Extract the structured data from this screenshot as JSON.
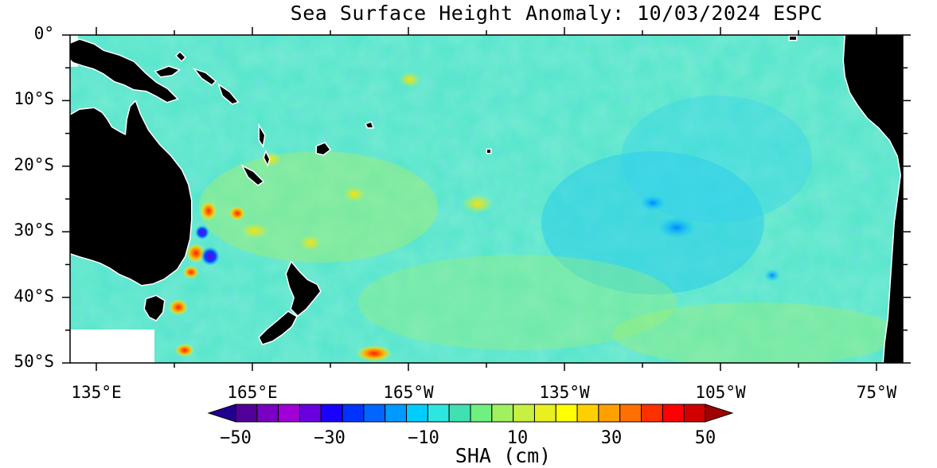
{
  "title": "Sea Surface Height Anomaly: 10/03/2024 ESPC",
  "map": {
    "lat_labels": [
      "0°",
      "10°S",
      "20°S",
      "30°S",
      "40°S",
      "50°S"
    ],
    "lon_labels": [
      "135°E",
      "165°E",
      "165°W",
      "135°W",
      "105°W",
      "75°W"
    ],
    "land_color": "#000000",
    "nodata_color": "#ffffff"
  },
  "colorbar": {
    "title": "SHA (cm)",
    "tick_labels": [
      "−50",
      "−30",
      "−10",
      "10",
      "30",
      "50"
    ],
    "range": [
      -50,
      50
    ],
    "step": 5,
    "colors": [
      "#52009a",
      "#7a00c2",
      "#a000d6",
      "#6a00e0",
      "#1a00ff",
      "#0033ff",
      "#0066ff",
      "#0099ff",
      "#00ccff",
      "#2ee6e0",
      "#40e0b0",
      "#70f080",
      "#a0f060",
      "#c8f040",
      "#e8f020",
      "#ffff00",
      "#ffd000",
      "#ffa000",
      "#ff7000",
      "#ff3000",
      "#ff0000",
      "#d00000"
    ],
    "under_color": "#200090",
    "over_color": "#a00000"
  }
}
